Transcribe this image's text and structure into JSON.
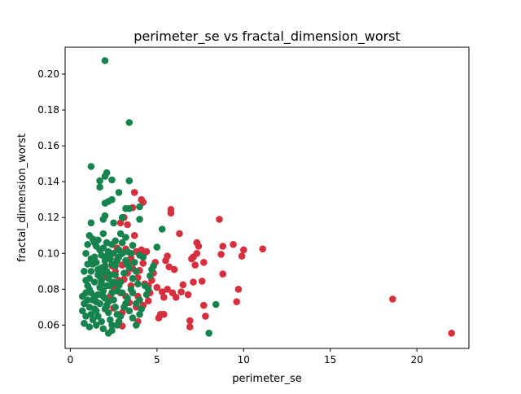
{
  "chart_data": {
    "type": "scatter",
    "title": "perimeter_se vs fractal_dimension_worst",
    "xlabel": "perimeter_se",
    "ylabel": "fractal_dimension_worst",
    "xlim": [
      -0.3,
      23.0
    ],
    "ylim": [
      0.047,
      0.215
    ],
    "x_ticks": [
      0,
      5,
      10,
      15,
      20
    ],
    "y_ticks": [
      0.06,
      0.08,
      0.1,
      0.12,
      0.14,
      0.16,
      0.18,
      0.2
    ],
    "grid": false,
    "legend": "none",
    "series": [
      {
        "color": "#d62f3e",
        "points": [
          [
            22.0,
            0.0555
          ],
          [
            18.6,
            0.0745
          ],
          [
            11.1,
            0.1025
          ],
          [
            10.0,
            0.102
          ],
          [
            9.9,
            0.0985
          ],
          [
            9.7,
            0.08
          ],
          [
            9.6,
            0.073
          ],
          [
            9.4,
            0.105
          ],
          [
            8.8,
            0.104
          ],
          [
            8.8,
            0.0885
          ],
          [
            8.7,
            0.0995
          ],
          [
            8.6,
            0.119
          ],
          [
            7.7,
            0.071
          ],
          [
            7.8,
            0.065
          ],
          [
            7.7,
            0.095
          ],
          [
            7.6,
            0.0845
          ],
          [
            7.4,
            0.104
          ],
          [
            7.3,
            0.106
          ],
          [
            7.3,
            0.1
          ],
          [
            7.2,
            0.0935
          ],
          [
            7.1,
            0.098
          ],
          [
            7.1,
            0.084
          ],
          [
            7.0,
            0.097
          ],
          [
            6.9,
            0.0625
          ],
          [
            6.9,
            0.059
          ],
          [
            6.8,
            0.077
          ],
          [
            6.5,
            0.0825
          ],
          [
            6.4,
            0.0785
          ],
          [
            6.3,
            0.111
          ],
          [
            6.1,
            0.0755
          ],
          [
            6.0,
            0.091
          ],
          [
            5.9,
            0.078
          ],
          [
            5.8,
            0.1245
          ],
          [
            5.8,
            0.1225
          ],
          [
            5.7,
            0.0925
          ],
          [
            5.6,
            0.0985
          ],
          [
            5.6,
            0.08
          ],
          [
            5.5,
            0.096
          ],
          [
            5.4,
            0.066
          ],
          [
            5.4,
            0.0755
          ],
          [
            5.3,
            0.0785
          ],
          [
            5.2,
            0.066
          ],
          [
            5.1,
            0.064
          ],
          [
            5.0,
            0.081
          ],
          [
            4.9,
            0.095
          ],
          [
            4.8,
            0.089
          ],
          [
            4.7,
            0.085
          ],
          [
            4.6,
            0.078
          ],
          [
            4.5,
            0.0735
          ],
          [
            4.4,
            0.101
          ],
          [
            4.3,
            0.1005
          ],
          [
            4.3,
            0.083
          ],
          [
            4.2,
            0.1285
          ],
          [
            4.2,
            0.0945
          ],
          [
            4.1,
            0.13
          ],
          [
            4.1,
            0.102
          ],
          [
            4.0,
            0.0905
          ],
          [
            3.9,
            0.0865
          ],
          [
            3.9,
            0.076
          ],
          [
            3.8,
            0.07
          ],
          [
            3.8,
            0.101
          ],
          [
            3.7,
            0.134
          ],
          [
            3.7,
            0.11
          ],
          [
            3.6,
            0.1255
          ],
          [
            3.6,
            0.0915
          ],
          [
            3.5,
            0.0975
          ],
          [
            3.5,
            0.082
          ],
          [
            3.4,
            0.0725
          ],
          [
            3.3,
            0.116
          ],
          [
            3.3,
            0.089
          ],
          [
            3.2,
            0.076
          ],
          [
            3.2,
            0.1025
          ],
          [
            3.1,
            0.0855
          ],
          [
            3.0,
            0.0595
          ],
          [
            3.0,
            0.0935
          ],
          [
            2.9,
            0.117
          ],
          [
            2.9,
            0.078
          ],
          [
            2.8,
            0.062
          ],
          [
            2.8,
            0.085
          ],
          [
            2.7,
            0.0965
          ],
          [
            2.6,
            0.09
          ],
          [
            2.5,
            0.081
          ],
          [
            2.5,
            0.0695
          ],
          [
            2.4,
            0.093
          ],
          [
            2.3,
            0.076
          ],
          [
            2.2,
            0.088
          ],
          [
            2.1,
            0.0705
          ],
          [
            2.0,
            0.087
          ],
          [
            3.1,
            0.12
          ],
          [
            3.4,
            0.095
          ],
          [
            3.9,
            0.062
          ],
          [
            4.2,
            0.071
          ],
          [
            4.5,
            0.082
          ],
          [
            2.7,
            0.103
          ],
          [
            3.0,
            0.067
          ]
        ]
      },
      {
        "color": "#16834d",
        "points": [
          [
            2.0,
            0.2075
          ],
          [
            3.4,
            0.173
          ],
          [
            1.2,
            0.1485
          ],
          [
            2.1,
            0.145
          ],
          [
            2.0,
            0.143
          ],
          [
            1.7,
            0.1405
          ],
          [
            2.4,
            0.141
          ],
          [
            3.4,
            0.1405
          ],
          [
            1.7,
            0.137
          ],
          [
            2.0,
            0.128
          ],
          [
            2.8,
            0.134
          ],
          [
            2.2,
            0.129
          ],
          [
            2.4,
            0.13
          ],
          [
            3.2,
            0.125
          ],
          [
            3.4,
            0.125
          ],
          [
            2.0,
            0.121
          ],
          [
            1.9,
            0.119
          ],
          [
            1.2,
            0.117
          ],
          [
            1.9,
            0.111
          ],
          [
            2.5,
            0.117
          ],
          [
            3.0,
            0.12
          ],
          [
            4.0,
            0.126
          ],
          [
            4.0,
            0.119
          ],
          [
            5.3,
            0.1135
          ],
          [
            0.9,
            0.1
          ],
          [
            1.0,
            0.105
          ],
          [
            1.1,
            0.11
          ],
          [
            1.3,
            0.108
          ],
          [
            1.4,
            0.106
          ],
          [
            1.5,
            0.104
          ],
          [
            1.6,
            0.1075
          ],
          [
            1.7,
            0.102
          ],
          [
            1.8,
            0.099
          ],
          [
            1.9,
            0.103
          ],
          [
            2.0,
            0.098
          ],
          [
            2.1,
            0.106
          ],
          [
            2.2,
            0.101
          ],
          [
            2.3,
            0.097
          ],
          [
            2.4,
            0.105
          ],
          [
            2.5,
            0.1
          ],
          [
            2.6,
            0.107
          ],
          [
            2.7,
            0.096
          ],
          [
            2.8,
            0.102
          ],
          [
            2.9,
            0.111
          ],
          [
            3.0,
            0.106
          ],
          [
            3.2,
            0.109
          ],
          [
            3.3,
            0.101
          ],
          [
            3.6,
            0.1045
          ],
          [
            4.0,
            0.099
          ],
          [
            4.2,
            0.098
          ],
          [
            5.0,
            0.1035
          ],
          [
            4.8,
            0.093
          ],
          [
            4.6,
            0.0875
          ],
          [
            4.3,
            0.082
          ],
          [
            4.4,
            0.077
          ],
          [
            4.0,
            0.074
          ],
          [
            3.8,
            0.09
          ],
          [
            3.6,
            0.086
          ],
          [
            3.5,
            0.08
          ],
          [
            3.3,
            0.075
          ],
          [
            3.1,
            0.07
          ],
          [
            2.9,
            0.065
          ],
          [
            2.7,
            0.06
          ],
          [
            2.4,
            0.057
          ],
          [
            2.2,
            0.0555
          ],
          [
            1.9,
            0.058
          ],
          [
            1.5,
            0.06
          ],
          [
            1.1,
            0.059
          ],
          [
            0.8,
            0.061
          ],
          [
            0.9,
            0.065
          ],
          [
            0.7,
            0.068
          ],
          [
            0.8,
            0.072
          ],
          [
            0.7,
            0.076
          ],
          [
            0.9,
            0.078
          ],
          [
            1.0,
            0.074
          ],
          [
            1.1,
            0.07
          ],
          [
            1.2,
            0.066
          ],
          [
            1.3,
            0.063
          ],
          [
            1.4,
            0.069
          ],
          [
            1.5,
            0.073
          ],
          [
            1.6,
            0.077
          ],
          [
            1.7,
            0.081
          ],
          [
            1.8,
            0.085
          ],
          [
            1.9,
            0.089
          ],
          [
            2.0,
            0.093
          ],
          [
            2.1,
            0.09
          ],
          [
            2.2,
            0.086
          ],
          [
            2.3,
            0.082
          ],
          [
            2.4,
            0.078
          ],
          [
            2.5,
            0.074
          ],
          [
            2.6,
            0.07
          ],
          [
            2.7,
            0.066
          ],
          [
            2.8,
            0.062
          ],
          [
            1.0,
            0.082
          ],
          [
            1.1,
            0.086
          ],
          [
            1.2,
            0.09
          ],
          [
            1.3,
            0.094
          ],
          [
            1.4,
            0.098
          ],
          [
            1.5,
            0.095
          ],
          [
            1.6,
            0.091
          ],
          [
            1.7,
            0.087
          ],
          [
            1.8,
            0.083
          ],
          [
            1.9,
            0.079
          ],
          [
            2.0,
            0.075
          ],
          [
            2.1,
            0.071
          ],
          [
            2.2,
            0.067
          ],
          [
            2.3,
            0.063
          ],
          [
            2.4,
            0.06
          ],
          [
            1.2,
            0.078
          ],
          [
            1.4,
            0.084
          ],
          [
            1.6,
            0.088
          ],
          [
            1.8,
            0.092
          ],
          [
            2.0,
            0.096
          ],
          [
            2.2,
            0.1
          ],
          [
            2.4,
            0.094
          ],
          [
            2.6,
            0.088
          ],
          [
            2.8,
            0.082
          ],
          [
            3.0,
            0.078
          ],
          [
            3.2,
            0.072
          ],
          [
            3.4,
            0.068
          ],
          [
            3.6,
            0.064
          ],
          [
            3.8,
            0.06
          ],
          [
            4.0,
            0.066
          ],
          [
            4.5,
            0.08
          ],
          [
            4.7,
            0.091
          ],
          [
            3.9,
            0.083
          ],
          [
            3.7,
            0.095
          ],
          [
            3.5,
            0.1
          ],
          [
            3.3,
            0.094
          ],
          [
            3.1,
            0.089
          ],
          [
            2.9,
            0.084
          ],
          [
            2.7,
            0.079
          ],
          [
            2.5,
            0.084
          ],
          [
            2.3,
            0.088
          ],
          [
            2.1,
            0.082
          ],
          [
            1.9,
            0.076
          ],
          [
            1.7,
            0.072
          ],
          [
            1.5,
            0.068
          ],
          [
            1.3,
            0.074
          ],
          [
            1.1,
            0.08
          ],
          [
            0.9,
            0.085
          ],
          [
            0.8,
            0.09
          ],
          [
            1.0,
            0.094
          ],
          [
            1.2,
            0.097
          ],
          [
            1.4,
            0.076
          ],
          [
            1.6,
            0.065
          ],
          [
            1.8,
            0.062
          ],
          [
            2.0,
            0.069
          ],
          [
            2.2,
            0.073
          ],
          [
            2.4,
            0.083
          ],
          [
            2.6,
            0.093
          ],
          [
            2.8,
            0.098
          ],
          [
            3.0,
            0.1
          ],
          [
            3.2,
            0.096
          ],
          [
            3.4,
            0.092
          ],
          [
            3.6,
            0.078
          ],
          [
            3.8,
            0.072
          ],
          [
            4.1,
            0.069
          ],
          [
            8.0,
            0.0555
          ],
          [
            8.4,
            0.0715
          ]
        ]
      }
    ]
  }
}
